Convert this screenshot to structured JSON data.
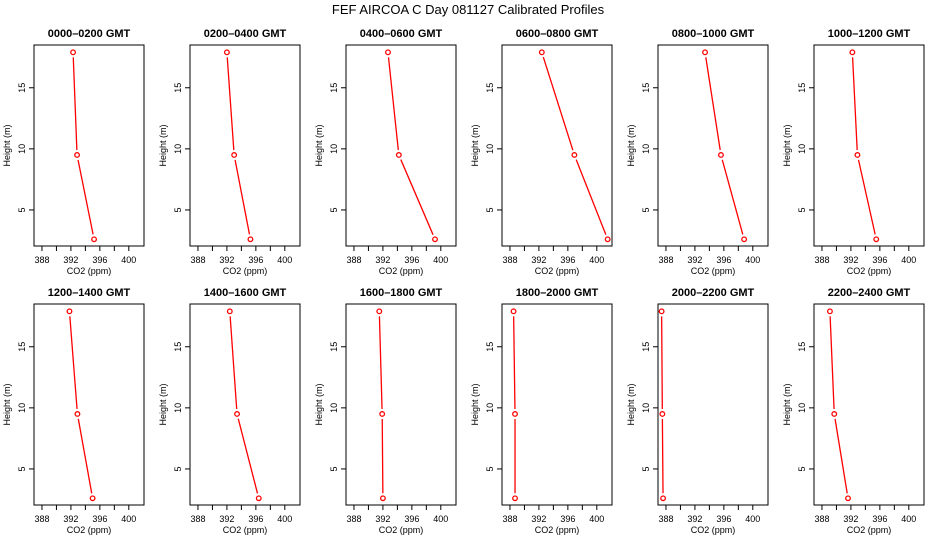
{
  "chart_data": {
    "type": "line",
    "title": "FEF AIRCOA C  Day 081127  Calibrated Profiles",
    "xlabel": "CO2 (ppm)",
    "ylabel": "Height (m)",
    "xlim": [
      386.9,
      402.1
    ],
    "ylim": [
      2.05,
      18.5
    ],
    "xticks": [
      388,
      390,
      392,
      394,
      396,
      398,
      400
    ],
    "xtick_labels": [
      "388",
      "",
      "392",
      "",
      "396",
      "",
      "400"
    ],
    "yticks": [
      5,
      10,
      15
    ],
    "ytick_labels": [
      "5",
      "10",
      "15"
    ],
    "heights": [
      17.9,
      9.5,
      2.6
    ],
    "color": "#ff0000",
    "grid": false,
    "panels": [
      {
        "title": "0000–0200 GMT",
        "co2": [
          392.3,
          392.85,
          395.2
        ]
      },
      {
        "title": "0200–0400 GMT",
        "co2": [
          392.0,
          393.0,
          395.25
        ]
      },
      {
        "title": "0400–0600 GMT",
        "co2": [
          392.7,
          394.2,
          399.2
        ]
      },
      {
        "title": "0600–0800 GMT",
        "co2": [
          392.4,
          396.9,
          401.5
        ]
      },
      {
        "title": "0800–1000 GMT",
        "co2": [
          393.4,
          395.6,
          398.8
        ]
      },
      {
        "title": "1000–1200 GMT",
        "co2": [
          392.2,
          392.9,
          395.5
        ]
      },
      {
        "title": "1200–1400 GMT",
        "co2": [
          391.8,
          392.9,
          395.0
        ]
      },
      {
        "title": "1400–1600 GMT",
        "co2": [
          392.4,
          393.4,
          396.4
        ]
      },
      {
        "title": "1600–1800 GMT",
        "co2": [
          391.5,
          391.9,
          392.0
        ]
      },
      {
        "title": "1800–2000 GMT",
        "co2": [
          388.5,
          388.7,
          388.7
        ]
      },
      {
        "title": "2000–2200 GMT",
        "co2": [
          387.4,
          387.5,
          387.6
        ]
      },
      {
        "title": "2200–2400 GMT",
        "co2": [
          389.1,
          389.7,
          391.6
        ]
      }
    ]
  }
}
